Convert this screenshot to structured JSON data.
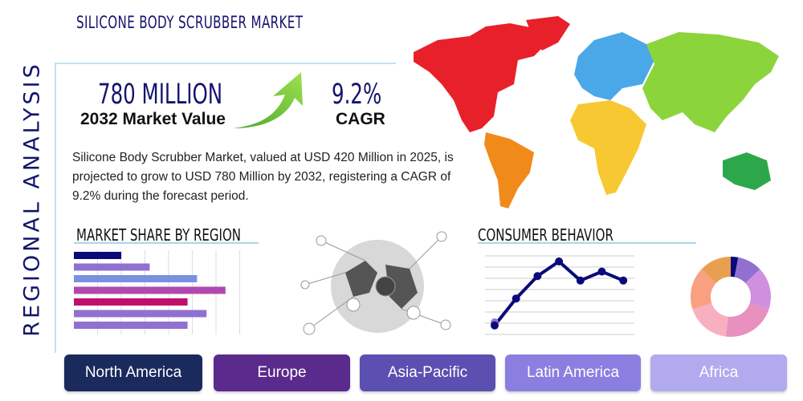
{
  "title": "SILICONE BODY SCRUBBER MARKET",
  "side_label": "REGIONAL ANALYSIS",
  "market_value": {
    "value": "780 MILLION",
    "label": "2032 Market Value"
  },
  "cagr": {
    "value": "9.2%",
    "label": "CAGR"
  },
  "description": "Silicone Body Scrubber Market, valued at USD 420 Million in 2025, is projected to grow to USD 780 Million by 2032, registering a CAGR of 9.2% during the forecast period.",
  "sections": {
    "market_share": "MARKET SHARE BY REGION",
    "consumer": "CONSUMER BEHAVIOR"
  },
  "regions": [
    {
      "label": "North America",
      "color": "#1b2a5c"
    },
    {
      "label": "Europe",
      "color": "#5a2a8c"
    },
    {
      "label": "Asia-Pacific",
      "color": "#5b4fb2"
    },
    {
      "label": "Latin America",
      "color": "#8a7fe0"
    },
    {
      "label": "Africa",
      "color": "#b2aaee"
    }
  ],
  "map_colors": {
    "north_america": "#e8202a",
    "south_america": "#f08a1a",
    "europe": "#4aa8e8",
    "asia": "#8cd43c",
    "africa": "#f8c832",
    "oceania": "#2ca84a"
  },
  "chart_data": [
    {
      "type": "bar",
      "orientation": "horizontal",
      "values": [
        2,
        3.2,
        5.2,
        6.4,
        4.8,
        5.6,
        4.8
      ],
      "colors": [
        "#0a0a7a",
        "#9070d0",
        "#7a90e0",
        "#b048b0",
        "#c0106e",
        "#9070d0",
        "#9070d0"
      ],
      "grid": true
    },
    {
      "type": "line",
      "values": [
        0.8,
        3.2,
        5.2,
        6.5,
        4.8,
        5.6,
        4.8
      ],
      "color": "#0a0a7a",
      "grid": true
    },
    {
      "type": "pie",
      "donut": true,
      "values": [
        3,
        10,
        17,
        22,
        18,
        17,
        13
      ],
      "colors": [
        "#0a0a7a",
        "#9070d0",
        "#d090e0",
        "#e890c0",
        "#f8b0c0",
        "#f8a080",
        "#e8a050"
      ]
    }
  ]
}
